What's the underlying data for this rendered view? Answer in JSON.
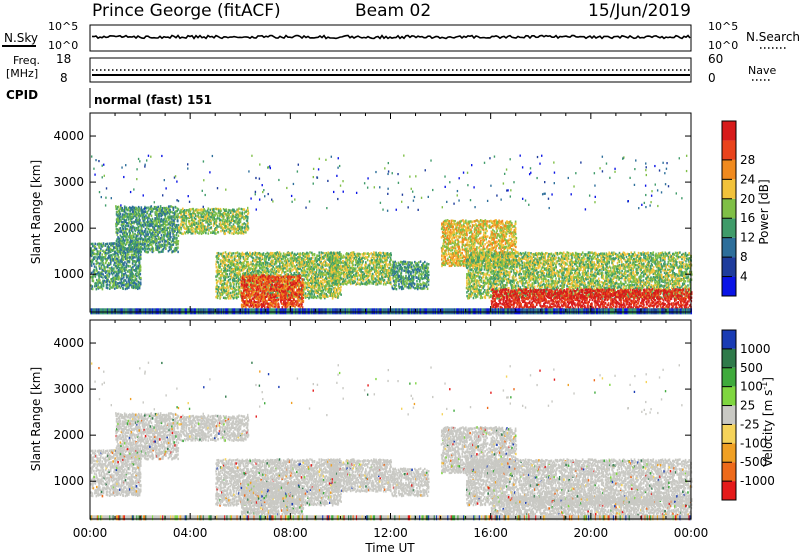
{
  "header": {
    "station": "Prince George (fitACF)",
    "beam": "Beam 02",
    "date": "15/Jun/2019"
  },
  "panels": {
    "nsky": {
      "label": "N.Sky",
      "ticks": [
        "10^5",
        "10^0"
      ],
      "right_ticks": [
        "10^5",
        "10^0"
      ],
      "right_label": "N.Search"
    },
    "freq": {
      "label_line1": "Freq.",
      "label_line2": "[MHz]",
      "ticks": [
        "18",
        "8"
      ],
      "right_ticks": [
        "60",
        "0"
      ],
      "right_label": "Nave"
    },
    "cpid": {
      "label": "CPID",
      "text": "normal (fast) 151"
    }
  },
  "chart_data": [
    {
      "type": "heatmap",
      "name": "power",
      "ylabel": "Slant Range [km]",
      "xlabel": "",
      "x_ticks": [
        "00:00",
        "04:00",
        "08:00",
        "12:00",
        "16:00",
        "20:00",
        "00:00"
      ],
      "y_ticks": [
        1000,
        2000,
        3000,
        4000
      ],
      "ylim": [
        180,
        4500
      ],
      "xlim_hours": [
        0,
        24
      ],
      "colorbar": {
        "label": "Power [dB]",
        "ticks": [
          "4",
          "8",
          "12",
          "16",
          "20",
          "24",
          "28"
        ],
        "colors": [
          "#0a14e6",
          "#1e3c9c",
          "#2d6e9a",
          "#3f9b69",
          "#7fbf46",
          "#f2c23a",
          "#f08a1e",
          "#e9431c",
          "#d71b1b"
        ]
      },
      "echo_regions": [
        {
          "t0": 0.0,
          "t1": 2.0,
          "r0": 700,
          "r1": 1700,
          "level": 3
        },
        {
          "t0": 1.0,
          "t1": 3.5,
          "r0": 1500,
          "r1": 2500,
          "level": 3
        },
        {
          "t0": 3.5,
          "t1": 6.3,
          "r0": 1900,
          "r1": 2450,
          "level": 4
        },
        {
          "t0": 5.0,
          "t1": 10.0,
          "r0": 500,
          "r1": 1500,
          "level": 4
        },
        {
          "t0": 6.0,
          "t1": 8.5,
          "r0": 300,
          "r1": 1000,
          "level": 7
        },
        {
          "t0": 9.5,
          "t1": 12.0,
          "r0": 800,
          "r1": 1500,
          "level": 4
        },
        {
          "t0": 12.0,
          "t1": 13.5,
          "r0": 700,
          "r1": 1300,
          "level": 3
        },
        {
          "t0": 14.0,
          "t1": 17.0,
          "r0": 1200,
          "r1": 2200,
          "level": 5
        },
        {
          "t0": 15.0,
          "t1": 24.0,
          "r0": 500,
          "r1": 1500,
          "level": 4
        },
        {
          "t0": 16.0,
          "t1": 24.0,
          "r0": 200,
          "r1": 700,
          "level": 8
        }
      ]
    },
    {
      "type": "heatmap",
      "name": "velocity",
      "ylabel": "Slant Range [km]",
      "xlabel": "Time UT",
      "x_ticks": [
        "00:00",
        "04:00",
        "08:00",
        "12:00",
        "16:00",
        "20:00",
        "00:00"
      ],
      "y_ticks": [
        1000,
        2000,
        3000,
        4000
      ],
      "ylim": [
        180,
        4500
      ],
      "xlim_hours": [
        0,
        24
      ],
      "colorbar": {
        "label": "Velocity [m s",
        "label_sup": "-1",
        "label_end": "]",
        "ticks": [
          "1000",
          "500",
          "100",
          "25",
          "-25",
          "-100",
          "-500",
          "-1000"
        ],
        "colors": [
          "#1a3cb4",
          "#2f7a4a",
          "#3faa3c",
          "#7fd640",
          "#c9c9c4",
          "#f5d35a",
          "#f0a024",
          "#ee6a1b",
          "#e51a1a"
        ]
      }
    }
  ],
  "colors": {
    "ground_scatter": "#c9c9c4",
    "axis": "#000000"
  }
}
